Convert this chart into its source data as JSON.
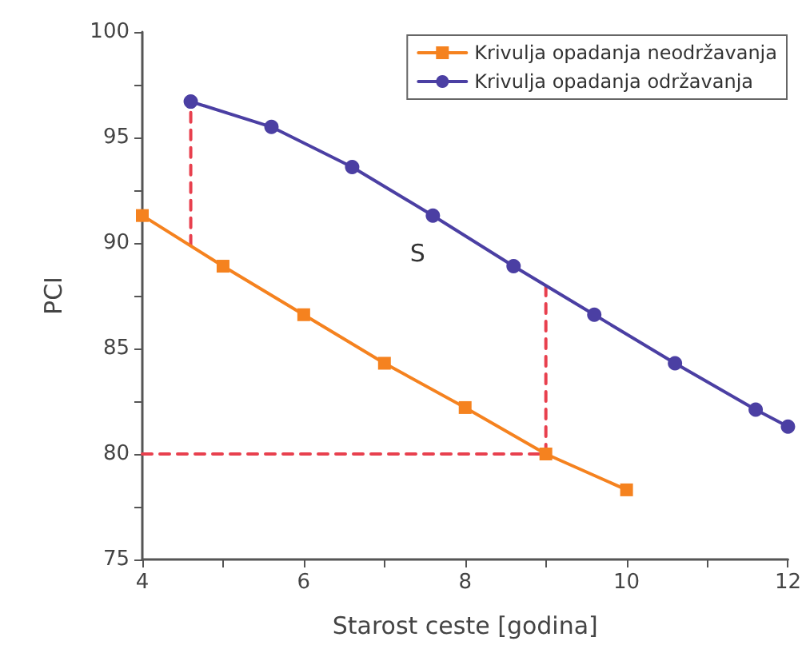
{
  "chart_data": {
    "type": "line",
    "xlabel": "Starost ceste [godina]",
    "ylabel": "PCI",
    "xlim": [
      4,
      12
    ],
    "xticks": [
      4,
      {
        "value": 5,
        "label": null
      },
      6,
      {
        "value": 7,
        "label": null
      },
      8,
      {
        "value": 9,
        "label": null
      },
      10,
      {
        "value": 11,
        "label": null
      },
      12
    ],
    "ylim": [
      75,
      100
    ],
    "yticks": [
      75,
      {
        "value": 77.5,
        "label": null
      },
      80,
      {
        "value": 82.5,
        "label": null
      },
      85,
      {
        "value": 87.5,
        "label": null
      },
      90,
      {
        "value": 92.5,
        "label": null
      },
      95,
      {
        "value": 97.5,
        "label": null
      },
      100
    ],
    "grid": false,
    "legend": "top right",
    "annotations": [
      "S"
    ],
    "series": [
      {
        "name": "Krivulja opadanja neodržavanja",
        "color": "#f5821f",
        "marker": "square",
        "x": [
          4,
          5,
          6,
          7,
          8,
          9,
          10
        ],
        "values": [
          91.3,
          88.9,
          86.6,
          84.3,
          82.2,
          80,
          78.3
        ]
      },
      {
        "name": "Krivulja opadanja održavanja",
        "color": "#4b3fa3",
        "marker": "circle",
        "x": [
          4.6,
          5.6,
          6.6,
          7.6,
          8.6,
          9.6,
          10.6,
          11.6,
          12
        ],
        "values": [
          96.7,
          95.5,
          93.6,
          91.3,
          88.9,
          86.6,
          84.3,
          82.1,
          81.3
        ]
      },
      {
        "color": "#e8404e",
        "marker": "none",
        "line_style": "dashed",
        "x": [
          4.6,
          4.6
        ],
        "values": [
          89.9,
          96.7
        ]
      },
      {
        "color": "#e8404e",
        "marker": "none",
        "line_style": "dashed",
        "x": [
          4,
          9
        ],
        "values": [
          80,
          80
        ]
      },
      {
        "color": "#e8404e",
        "marker": "none",
        "line_style": "dashed",
        "x": [
          9,
          9
        ],
        "values": [
          80,
          88
        ]
      }
    ]
  }
}
